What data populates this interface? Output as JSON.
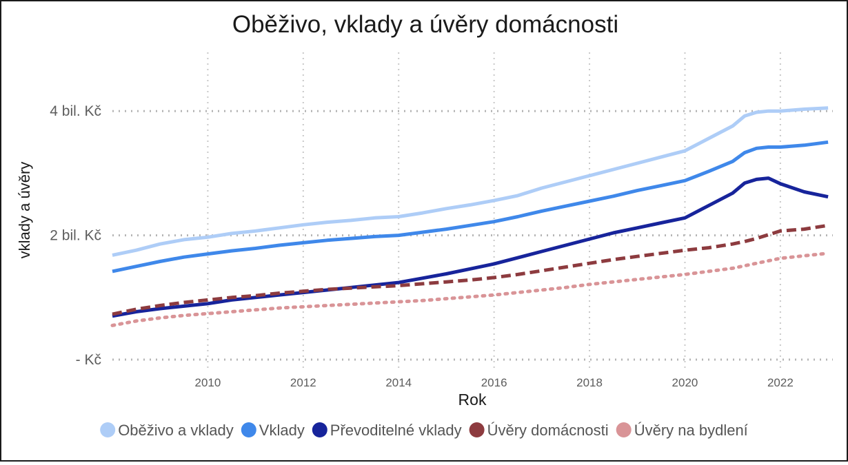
{
  "chart_data": {
    "type": "line",
    "title": "Oběživo, vklady a úvěry domácnosti",
    "xlabel": "Rok",
    "ylabel": "vklady a úvěry",
    "xlim": [
      2008.0,
      2023.1
    ],
    "ylim": [
      -0.2,
      5.1
    ],
    "grid": true,
    "legend_position": "bottom",
    "x_ticks": [
      {
        "value": 2010,
        "label": "2010"
      },
      {
        "value": 2012,
        "label": "2012"
      },
      {
        "value": 2014,
        "label": "2014"
      },
      {
        "value": 2016,
        "label": "2016"
      },
      {
        "value": 2018,
        "label": "2018"
      },
      {
        "value": 2020,
        "label": "2020"
      },
      {
        "value": 2022,
        "label": "2022"
      }
    ],
    "y_ticks": [
      {
        "value": 0,
        "label": "- Kč"
      },
      {
        "value": 2,
        "label": "2 bil. Kč"
      },
      {
        "value": 4,
        "label": "4 bil. Kč"
      }
    ],
    "x": [
      2008.0,
      2008.5,
      2009.0,
      2009.5,
      2010.0,
      2010.5,
      2011.0,
      2011.5,
      2012.0,
      2012.5,
      2013.0,
      2013.5,
      2014.0,
      2014.5,
      2015.0,
      2015.5,
      2016.0,
      2016.5,
      2017.0,
      2017.5,
      2018.0,
      2018.5,
      2019.0,
      2019.5,
      2020.0,
      2020.5,
      2021.0,
      2021.25,
      2021.5,
      2021.75,
      2022.0,
      2022.5,
      2023.0
    ],
    "series": [
      {
        "name": "Oběživo a vklady",
        "color": "#aecdf7",
        "dash": "solid",
        "values": [
          1.68,
          1.76,
          1.86,
          1.93,
          1.97,
          2.03,
          2.07,
          2.12,
          2.17,
          2.21,
          2.24,
          2.28,
          2.3,
          2.36,
          2.43,
          2.49,
          2.56,
          2.64,
          2.76,
          2.86,
          2.96,
          3.06,
          3.16,
          3.26,
          3.36,
          3.56,
          3.76,
          3.92,
          3.98,
          4.0,
          4.0,
          4.03,
          4.05
        ]
      },
      {
        "name": "Vklady",
        "color": "#3f88ea",
        "dash": "solid",
        "values": [
          1.42,
          1.5,
          1.58,
          1.65,
          1.7,
          1.75,
          1.79,
          1.84,
          1.88,
          1.92,
          1.95,
          1.98,
          2.0,
          2.05,
          2.1,
          2.16,
          2.22,
          2.3,
          2.39,
          2.47,
          2.55,
          2.63,
          2.72,
          2.8,
          2.88,
          3.03,
          3.19,
          3.33,
          3.4,
          3.42,
          3.42,
          3.45,
          3.5
        ]
      },
      {
        "name": "Převoditelné vklady",
        "color": "#17249b",
        "dash": "solid",
        "values": [
          0.7,
          0.77,
          0.82,
          0.86,
          0.9,
          0.96,
          1.0,
          1.04,
          1.08,
          1.12,
          1.16,
          1.2,
          1.24,
          1.31,
          1.38,
          1.46,
          1.54,
          1.64,
          1.74,
          1.84,
          1.94,
          2.04,
          2.12,
          2.2,
          2.28,
          2.48,
          2.68,
          2.84,
          2.9,
          2.92,
          2.83,
          2.7,
          2.62
        ]
      },
      {
        "name": "Úvěry domácnosti",
        "color": "#8d3b3f",
        "dash": "dashed",
        "values": [
          0.73,
          0.81,
          0.87,
          0.92,
          0.96,
          1.0,
          1.03,
          1.07,
          1.1,
          1.13,
          1.15,
          1.17,
          1.19,
          1.22,
          1.25,
          1.28,
          1.32,
          1.37,
          1.43,
          1.49,
          1.55,
          1.61,
          1.66,
          1.71,
          1.76,
          1.8,
          1.86,
          1.9,
          1.95,
          2.01,
          2.07,
          2.1,
          2.16
        ]
      },
      {
        "name": "Úvěry na bydlení",
        "color": "#d99497",
        "dash": "dotted",
        "values": [
          0.55,
          0.62,
          0.67,
          0.71,
          0.74,
          0.77,
          0.8,
          0.83,
          0.85,
          0.87,
          0.89,
          0.91,
          0.93,
          0.95,
          0.98,
          1.01,
          1.04,
          1.08,
          1.12,
          1.16,
          1.21,
          1.25,
          1.29,
          1.33,
          1.37,
          1.42,
          1.47,
          1.51,
          1.55,
          1.59,
          1.63,
          1.67,
          1.71
        ]
      }
    ]
  }
}
